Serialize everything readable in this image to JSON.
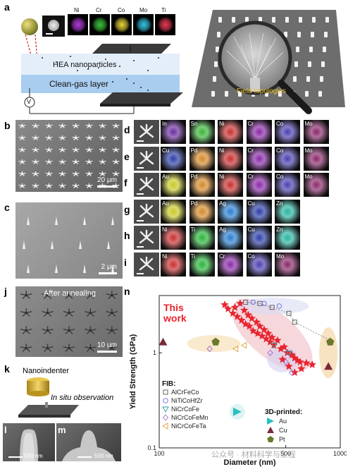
{
  "panels": {
    "a": "a",
    "b": "b",
    "c": "c",
    "d": "d",
    "e": "e",
    "f": "f",
    "g": "g",
    "h": "h",
    "i": "i",
    "j": "j",
    "k": "k",
    "l": "l",
    "m": "m",
    "n": "n"
  },
  "panel_a": {
    "elements": [
      "Ni",
      "Cr",
      "Co",
      "Mo",
      "Ti"
    ],
    "element_colors": [
      "#b03bd8",
      "#3bbf3b",
      "#e6d23a",
      "#35c3e0",
      "#e33a52"
    ],
    "hea_label": "HEA nanoparticles",
    "gas_label": "Clean-gas layer",
    "v_label": "V",
    "field_label": "Field topologies"
  },
  "panel_b": {
    "scale": "20 μm"
  },
  "panel_c": {
    "scale": "2 μm"
  },
  "panel_j": {
    "title": "After annealing",
    "scale": "10 μm"
  },
  "panel_k": {
    "top": "Nanoindenter",
    "side": "In situ observation"
  },
  "panel_l": {
    "scale": "500 nm"
  },
  "panel_m": {
    "scale": "500 nm"
  },
  "map_rows": [
    {
      "letter": "d",
      "labels": [
        "In",
        "Sn",
        "Ni",
        "Cr",
        "Co",
        "Mo"
      ],
      "colors": [
        "#6b2ea0",
        "#3ab53a",
        "#c83030",
        "#8a2aa8",
        "#4b3fb0",
        "#8a2a6a"
      ]
    },
    {
      "letter": "e",
      "labels": [
        "Cu",
        "Pd",
        "Ni",
        "Cr",
        "Co",
        "Mo"
      ],
      "colors": [
        "#2c3fa8",
        "#d68a2a",
        "#c83030",
        "#8a2aa8",
        "#4b3fb0",
        "#8a2a6a"
      ]
    },
    {
      "letter": "f",
      "labels": [
        "Au",
        "Pd",
        "Ni",
        "Cr",
        "Co",
        "Mo"
      ],
      "colors": [
        "#c9c92a",
        "#d68a2a",
        "#c83030",
        "#8a2aa8",
        "#4b3fb0",
        "#8a2a6a"
      ]
    },
    {
      "letter": "g",
      "labels": [
        "Au",
        "Pd",
        "Ag",
        "Cu",
        "Zn"
      ],
      "colors": [
        "#c9c92a",
        "#d68a2a",
        "#2a7fd0",
        "#2c3fa8",
        "#2ab5a0"
      ]
    },
    {
      "letter": "h",
      "labels": [
        "Ni",
        "Ti",
        "Ag",
        "Cu",
        "Zn"
      ],
      "colors": [
        "#c83030",
        "#2ab53a",
        "#2a7fd0",
        "#2c3fa8",
        "#2ab5a0"
      ]
    },
    {
      "letter": "i",
      "labels": [
        "Ni",
        "Ti",
        "Cr",
        "Co",
        "Mo"
      ],
      "colors": [
        "#c83030",
        "#2ab53a",
        "#8a2aa8",
        "#4b3fb0",
        "#8a2a6a"
      ]
    }
  ],
  "chart_data": {
    "type": "scatter",
    "xlabel": "Diameter (nm)",
    "ylabel": "Yield Strength (GPa)",
    "x_scale": "log",
    "y_scale": "log",
    "xlim": [
      100,
      1000
    ],
    "ylim": [
      0.1,
      4
    ],
    "x_ticks": [
      {
        "v": 100,
        "t": "100"
      },
      {
        "v": 500,
        "t": "500"
      },
      {
        "v": 1000,
        "t": "1000"
      }
    ],
    "y_ticks": [
      {
        "v": 0.1,
        "t": "0.1"
      },
      {
        "v": 1,
        "t": "1"
      }
    ],
    "annotation": "This\nwork",
    "annotation_color": "#e8252f",
    "fib_title": "FIB:",
    "fib_legend": [
      {
        "name": "AlCrFeCo",
        "marker": "square",
        "color": "#555555"
      },
      {
        "name": "NiTiCoHfZr",
        "marker": "circle",
        "color": "#6a6ae0"
      },
      {
        "name": "NiCrCoFe",
        "marker": "tri-down",
        "color": "#2aa3a3"
      },
      {
        "name": "NiCrCoFeMn",
        "marker": "diamond",
        "color": "#9a6ad0"
      },
      {
        "name": "NiCrCoFeTa",
        "marker": "tri-left",
        "color": "#e09a3a"
      }
    ],
    "printed_title": "3D-printed:",
    "printed_legend": [
      {
        "name": "Au",
        "marker": "tri-right",
        "color": "#2ac0c0"
      },
      {
        "name": "Cu",
        "marker": "tri-up",
        "color": "#7a2a3a"
      },
      {
        "name": "Pt",
        "marker": "pentagon",
        "color": "#6a7a2a"
      }
    ],
    "series": [
      {
        "name": "This work",
        "marker": "star",
        "color": "#e8252f",
        "points": [
          [
            230,
            3.2
          ],
          [
            240,
            2.9
          ],
          [
            255,
            2.6
          ],
          [
            262,
            3.0
          ],
          [
            270,
            2.4
          ],
          [
            280,
            3.3
          ],
          [
            285,
            2.2
          ],
          [
            295,
            2.8
          ],
          [
            300,
            2.0
          ],
          [
            310,
            2.5
          ],
          [
            315,
            1.9
          ],
          [
            325,
            2.3
          ],
          [
            330,
            1.7
          ],
          [
            345,
            2.1
          ],
          [
            350,
            1.6
          ],
          [
            360,
            1.9
          ],
          [
            370,
            1.5
          ],
          [
            380,
            1.75
          ],
          [
            390,
            1.4
          ],
          [
            400,
            1.6
          ],
          [
            410,
            1.3
          ],
          [
            420,
            1.45
          ],
          [
            430,
            1.2
          ],
          [
            450,
            1.35
          ],
          [
            470,
            1.1
          ],
          [
            490,
            1.15
          ],
          [
            510,
            1.0
          ],
          [
            540,
            0.95
          ],
          [
            560,
            0.88
          ],
          [
            580,
            0.83
          ],
          [
            600,
            0.8
          ],
          [
            650,
            0.78
          ],
          [
            700,
            0.75
          ],
          [
            520,
            0.72
          ],
          [
            480,
            0.85
          ],
          [
            610,
            0.68
          ],
          [
            560,
            0.62
          ]
        ]
      },
      {
        "name": "AlCrFeCo",
        "marker": "square",
        "color": "#555555",
        "points": [
          [
            300,
            3.4
          ],
          [
            360,
            3.3
          ],
          [
            420,
            3.0
          ],
          [
            520,
            2.6
          ],
          [
            560,
            2.1
          ]
        ]
      },
      {
        "name": "NiTiCoHfZr",
        "marker": "circle",
        "color": "#6a6ae0",
        "points": [
          [
            330,
            3.4
          ],
          [
            380,
            3.3
          ],
          [
            460,
            3.1
          ]
        ]
      },
      {
        "name": "NiCrCoFe",
        "marker": "tri-down",
        "color": "#2aa3a3",
        "points": [
          [
            430,
            1.2
          ],
          [
            520,
            1.0
          ]
        ]
      },
      {
        "name": "NiCrCoFeMn",
        "marker": "diamond",
        "color": "#9a6ad0",
        "points": [
          [
            190,
            1.1
          ],
          [
            410,
            1.0
          ],
          [
            500,
            0.8
          ],
          [
            540,
            0.62
          ]
        ]
      },
      {
        "name": "NiCrCoFeTa",
        "marker": "tri-left",
        "color": "#e09a3a",
        "points": [
          [
            265,
            1.1
          ],
          [
            295,
            1.2
          ]
        ]
      },
      {
        "name": "Au",
        "marker": "tri-right",
        "color": "#2ac0c0",
        "points": [
          [
            270,
            0.24
          ]
        ]
      },
      {
        "name": "Cu",
        "marker": "tri-up",
        "color": "#7a2a3a",
        "points": [
          [
            105,
            1.3
          ],
          [
            860,
            0.72
          ]
        ]
      },
      {
        "name": "Pt",
        "marker": "pentagon",
        "color": "#6a7a2a",
        "points": [
          [
            205,
            1.3
          ],
          [
            880,
            1.3
          ]
        ]
      }
    ]
  },
  "watermark": "公众号 · 材料科学与工程"
}
